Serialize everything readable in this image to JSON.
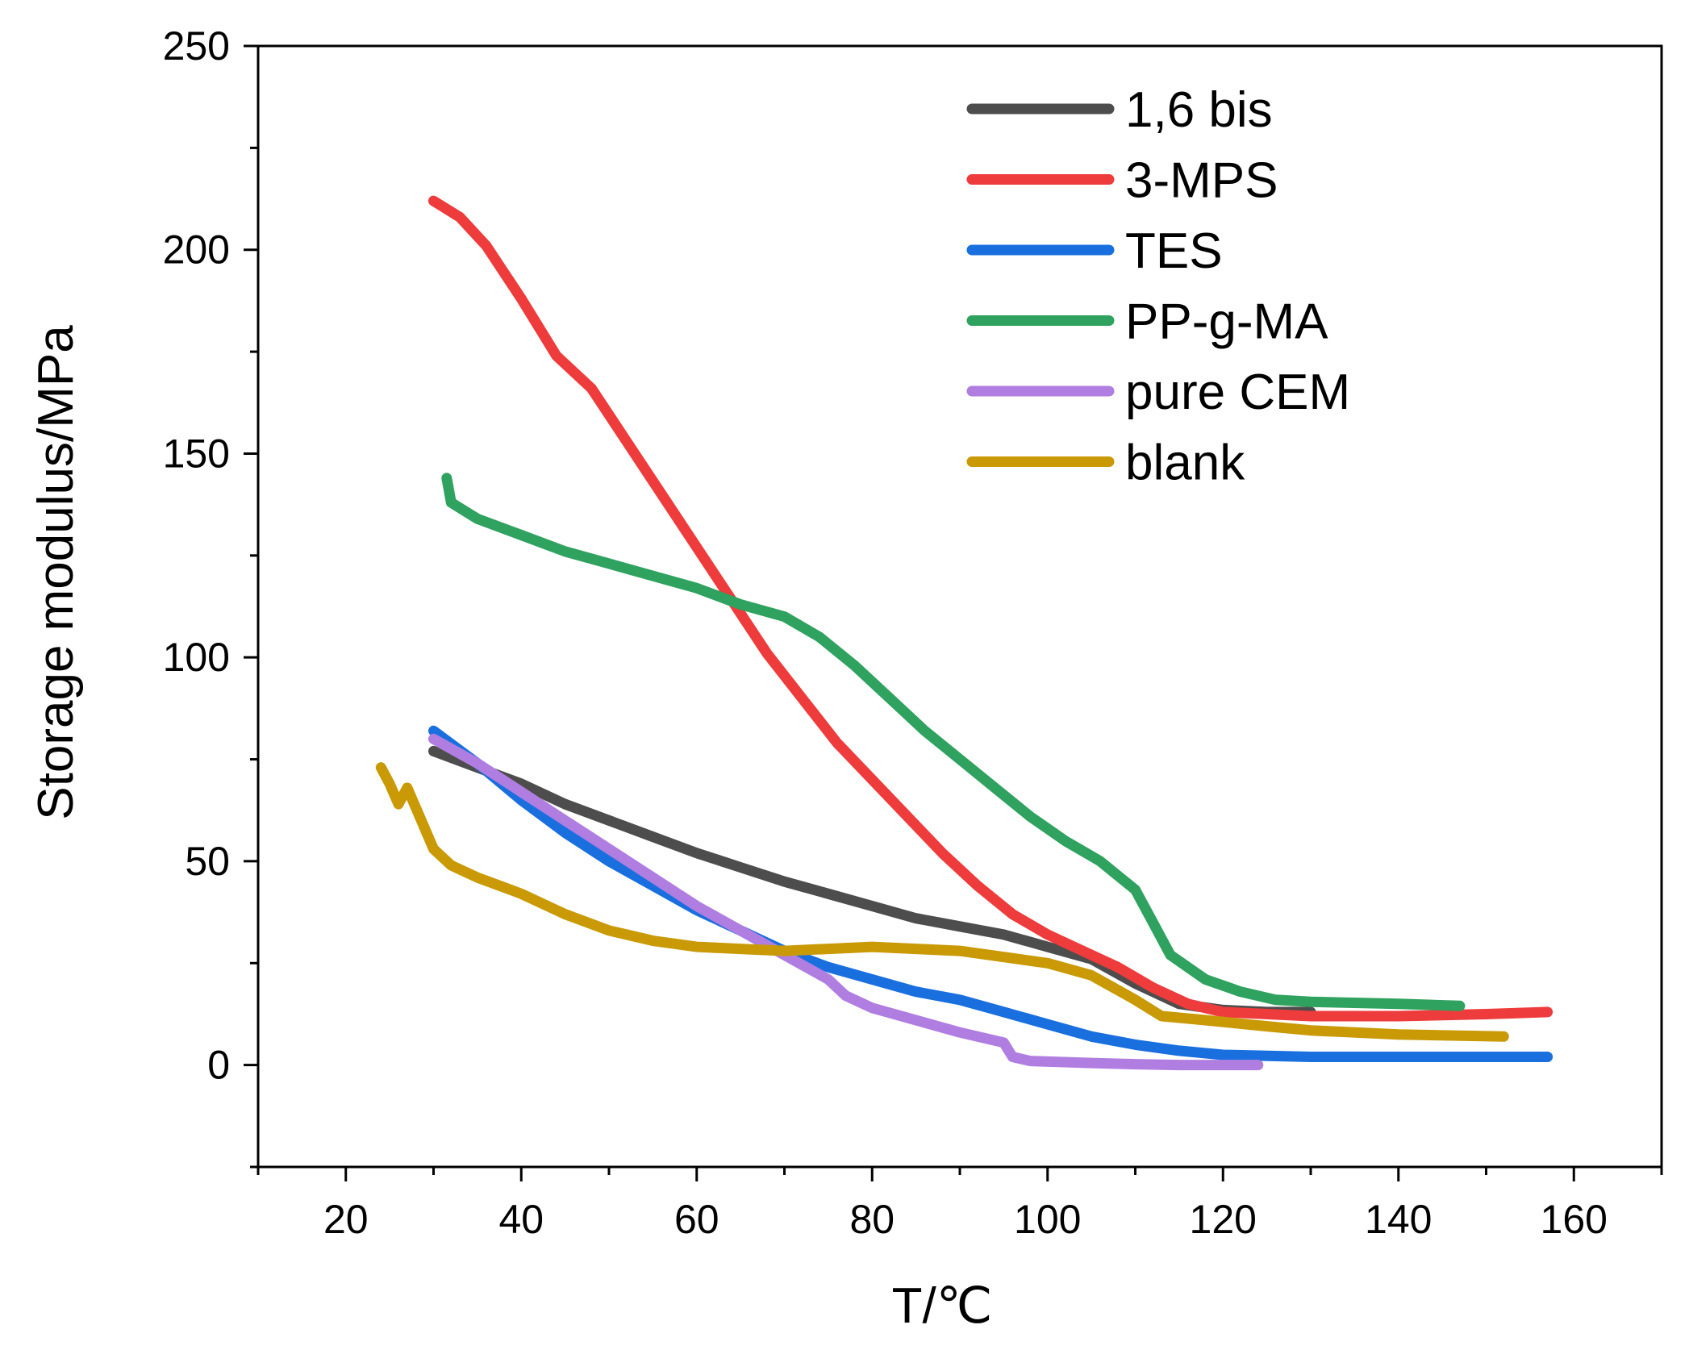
{
  "chart_data": {
    "type": "line",
    "title": "",
    "xlabel": "T/℃",
    "ylabel": "Storage modulus/MPa",
    "xlim": [
      10,
      170
    ],
    "ylim": [
      -25,
      250
    ],
    "xticks": [
      20,
      40,
      60,
      80,
      100,
      120,
      140,
      160
    ],
    "yticks": [
      0,
      50,
      100,
      150,
      200,
      250
    ],
    "grid": false,
    "legend_position": "top-right",
    "series": [
      {
        "name": "1,6 bis",
        "color": "#4d4d4d",
        "points": [
          [
            30,
            77
          ],
          [
            35,
            73
          ],
          [
            40,
            69
          ],
          [
            45,
            64
          ],
          [
            50,
            60
          ],
          [
            55,
            56
          ],
          [
            60,
            52
          ],
          [
            65,
            48.5
          ],
          [
            70,
            45
          ],
          [
            75,
            42
          ],
          [
            80,
            39
          ],
          [
            85,
            36
          ],
          [
            90,
            34
          ],
          [
            95,
            32
          ],
          [
            100,
            29
          ],
          [
            105,
            26
          ],
          [
            110,
            20
          ],
          [
            115,
            15
          ],
          [
            120,
            13.5
          ],
          [
            125,
            13
          ],
          [
            130,
            13
          ]
        ]
      },
      {
        "name": "3-MPS",
        "color": "#ee3b3b",
        "points": [
          [
            30,
            212
          ],
          [
            33,
            208
          ],
          [
            36,
            201
          ],
          [
            40,
            188
          ],
          [
            44,
            174
          ],
          [
            48,
            166
          ],
          [
            52,
            153
          ],
          [
            56,
            140
          ],
          [
            60,
            127
          ],
          [
            64,
            114
          ],
          [
            68,
            101
          ],
          [
            72,
            90
          ],
          [
            76,
            79
          ],
          [
            80,
            70
          ],
          [
            84,
            61
          ],
          [
            88,
            52
          ],
          [
            92,
            44
          ],
          [
            96,
            37
          ],
          [
            100,
            32
          ],
          [
            104,
            28
          ],
          [
            108,
            24
          ],
          [
            112,
            19
          ],
          [
            116,
            15
          ],
          [
            120,
            13
          ],
          [
            130,
            12
          ],
          [
            140,
            12
          ],
          [
            150,
            12.5
          ],
          [
            157,
            13
          ]
        ]
      },
      {
        "name": "TES",
        "color": "#1a6fdf",
        "points": [
          [
            30,
            82
          ],
          [
            35,
            74
          ],
          [
            40,
            65
          ],
          [
            45,
            57
          ],
          [
            50,
            50
          ],
          [
            55,
            44
          ],
          [
            60,
            38
          ],
          [
            65,
            33
          ],
          [
            70,
            28
          ],
          [
            75,
            24
          ],
          [
            80,
            21
          ],
          [
            85,
            18
          ],
          [
            90,
            16
          ],
          [
            95,
            13
          ],
          [
            100,
            10
          ],
          [
            105,
            7
          ],
          [
            110,
            5
          ],
          [
            115,
            3.5
          ],
          [
            120,
            2.5
          ],
          [
            130,
            2
          ],
          [
            140,
            2
          ],
          [
            150,
            2
          ],
          [
            157,
            2
          ]
        ]
      },
      {
        "name": "PP-g-MA",
        "color": "#2ea25e",
        "points": [
          [
            31.5,
            144
          ],
          [
            32,
            138
          ],
          [
            35,
            134
          ],
          [
            40,
            130
          ],
          [
            45,
            126
          ],
          [
            50,
            123
          ],
          [
            55,
            120
          ],
          [
            60,
            117
          ],
          [
            65,
            113
          ],
          [
            70,
            110
          ],
          [
            74,
            105
          ],
          [
            78,
            98
          ],
          [
            82,
            90
          ],
          [
            86,
            82
          ],
          [
            90,
            75
          ],
          [
            94,
            68
          ],
          [
            98,
            61
          ],
          [
            102,
            55
          ],
          [
            106,
            50
          ],
          [
            110,
            43
          ],
          [
            112,
            35
          ],
          [
            114,
            27
          ],
          [
            118,
            21
          ],
          [
            122,
            18
          ],
          [
            126,
            16
          ],
          [
            130,
            15.5
          ],
          [
            140,
            15
          ],
          [
            147,
            14.5
          ]
        ]
      },
      {
        "name": "pure CEM",
        "color": "#b07ee0",
        "points": [
          [
            30,
            80
          ],
          [
            35,
            74
          ],
          [
            40,
            67
          ],
          [
            45,
            60
          ],
          [
            50,
            53
          ],
          [
            55,
            46
          ],
          [
            60,
            39
          ],
          [
            65,
            33
          ],
          [
            70,
            27
          ],
          [
            75,
            21
          ],
          [
            77,
            17
          ],
          [
            80,
            14
          ],
          [
            85,
            11
          ],
          [
            90,
            8
          ],
          [
            95,
            5.5
          ],
          [
            96,
            2
          ],
          [
            98,
            1
          ],
          [
            105,
            0.5
          ],
          [
            110,
            0.2
          ],
          [
            115,
            0
          ],
          [
            120,
            0
          ],
          [
            124,
            0
          ]
        ]
      },
      {
        "name": "blank",
        "color": "#c99a06",
        "points": [
          [
            24,
            73
          ],
          [
            25,
            69
          ],
          [
            26,
            64
          ],
          [
            27,
            68
          ],
          [
            28,
            63
          ],
          [
            30,
            53
          ],
          [
            32,
            49
          ],
          [
            35,
            46
          ],
          [
            40,
            42
          ],
          [
            45,
            37
          ],
          [
            50,
            33
          ],
          [
            55,
            30.5
          ],
          [
            60,
            29
          ],
          [
            65,
            28.5
          ],
          [
            70,
            28
          ],
          [
            75,
            28.5
          ],
          [
            80,
            29
          ],
          [
            85,
            28.5
          ],
          [
            90,
            28
          ],
          [
            95,
            26.5
          ],
          [
            100,
            25
          ],
          [
            105,
            22
          ],
          [
            110,
            16
          ],
          [
            113,
            12
          ],
          [
            118,
            11
          ],
          [
            125,
            9.5
          ],
          [
            130,
            8.5
          ],
          [
            140,
            7.5
          ],
          [
            152,
            7
          ]
        ]
      }
    ]
  }
}
